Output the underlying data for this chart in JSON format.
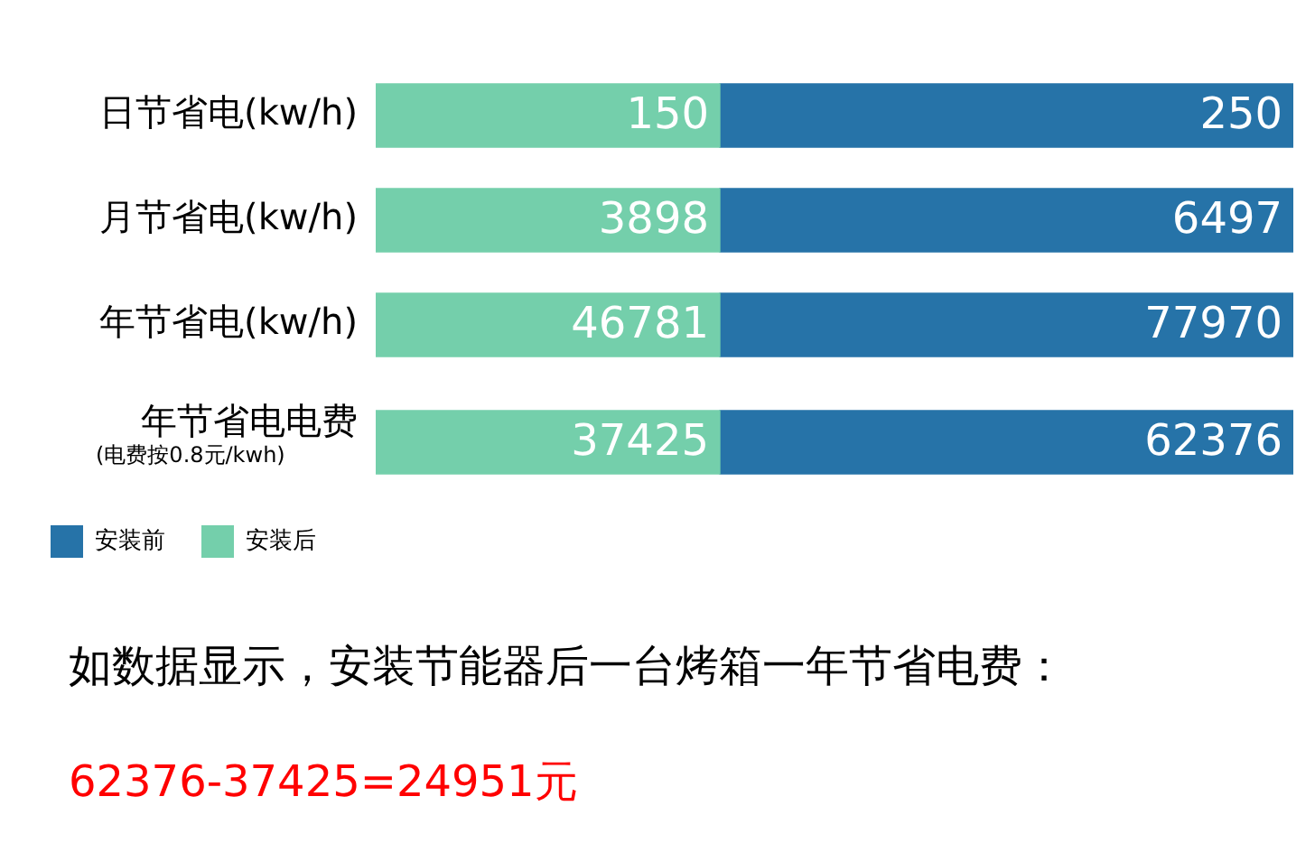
{
  "chart_data": [
    {
      "type": "bar",
      "orientation": "horizontal",
      "stacked": true,
      "categories": [
        "日节省电(kw/h)"
      ],
      "series": [
        {
          "color": "#74cfab",
          "values": [
            150
          ]
        },
        {
          "color": "#2673a8",
          "values": [
            250
          ]
        }
      ],
      "data_labels": true,
      "tick_labels": "y",
      "legend": false
    },
    {
      "type": "bar",
      "orientation": "horizontal",
      "stacked": true,
      "categories": [
        "月节省电(kw/h)"
      ],
      "series": [
        {
          "color": "#74cfab",
          "values": [
            3898
          ]
        },
        {
          "color": "#2673a8",
          "values": [
            6497
          ]
        }
      ],
      "data_labels": true,
      "tick_labels": "y",
      "legend": false
    },
    {
      "type": "bar",
      "orientation": "horizontal",
      "stacked": true,
      "categories": [
        "年节省电(kw/h)"
      ],
      "series": [
        {
          "color": "#74cfab",
          "values": [
            46781
          ]
        },
        {
          "color": "#2673a8",
          "values": [
            77970
          ]
        }
      ],
      "data_labels": true,
      "tick_labels": "y",
      "legend": false
    },
    {
      "type": "bar",
      "orientation": "horizontal",
      "stacked": true,
      "categories": [
        "年节省电电费\n(电费按0.8元/kwh)"
      ],
      "series": [
        {
          "name": "安装后",
          "color": "#74cfab",
          "values": [
            37425
          ]
        },
        {
          "name": "安装前",
          "color": "#2673a8",
          "values": [
            62376
          ]
        }
      ],
      "data_labels": true,
      "tick_labels": "y",
      "legend": "bottom",
      "annotations": [
        "如数据显示，安装节能器后一台烤箱一年节省电费：",
        "62376-37425=24951元"
      ]
    }
  ]
}
